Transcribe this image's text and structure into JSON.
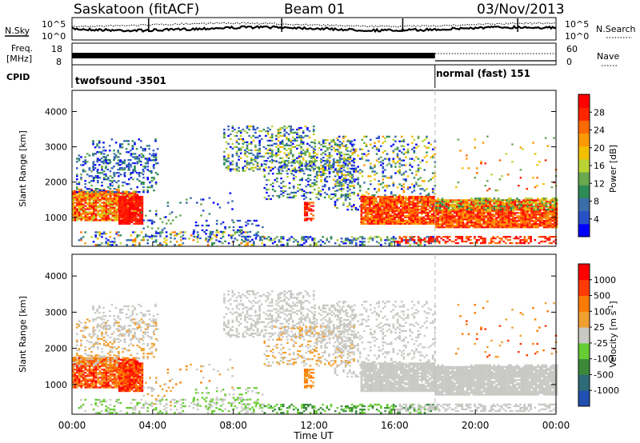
{
  "header": {
    "station": "Saskatoon (fitACF)",
    "beam": "Beam 01",
    "date": "03/Nov/2013"
  },
  "side_labels": {
    "nsky": "N.Sky",
    "freq_line1": "Freq.",
    "freq_line2": "[MHz]",
    "cpid": "CPID",
    "nsearch": "N.Search",
    "nave": "Nave"
  },
  "top_axes": {
    "nsky_left_ticks": [
      "10^5",
      "10^0"
    ],
    "nsky_right_ticks": [
      "10^5",
      "10^0"
    ],
    "freq_left_ticks": [
      "18",
      "8"
    ],
    "nave_right_ticks": [
      "60",
      "0"
    ]
  },
  "cpid_segments": [
    {
      "name": "twofsound",
      "id": "-3501",
      "label": "twofsound -3501"
    },
    {
      "name": "normal (fast)",
      "id": "151",
      "label": "normal (fast) 151"
    }
  ],
  "chart_data": [
    {
      "type": "heatmap",
      "name": "power-panel",
      "xlabel": "",
      "ylabel": "Slant Range [km]",
      "xlim": [
        0,
        24
      ],
      "ylim": [
        180,
        4600
      ],
      "yticks": [
        1000,
        2000,
        3000,
        4000
      ],
      "colorbar": {
        "label": "Power [dB]",
        "ticks": [
          "4",
          "8",
          "12",
          "16",
          "20",
          "24",
          "28"
        ],
        "colors": [
          "#0000ff",
          "#2a50c8",
          "#3a6ea8",
          "#2e8b57",
          "#6aa84f",
          "#b8d432",
          "#f2c000",
          "#ff9900",
          "#ff6a00",
          "#ff2400",
          "#ff0000"
        ]
      },
      "cpid_change_time": 18.0
    },
    {
      "type": "heatmap",
      "name": "velocity-panel",
      "xlabel": "Time UT",
      "ylabel": "Slant Range [km]",
      "xlim": [
        0,
        24
      ],
      "ylim": [
        180,
        4600
      ],
      "yticks": [
        1000,
        2000,
        3000,
        4000
      ],
      "xticks": [
        "00:00",
        "04:00",
        "08:00",
        "12:00",
        "16:00",
        "20:00",
        "00:00"
      ],
      "colorbar": {
        "label": "Velocity [m s",
        "label_sup": "-1",
        "label_end": "]",
        "ticks": [
          "1000",
          "500",
          "100",
          "25",
          "-25",
          "-100",
          "-500",
          "-1000"
        ],
        "colors": [
          "#1f4fb0",
          "#2e6b7a",
          "#3a8a3a",
          "#66cc33",
          "#c8c8c4",
          "#f0a030",
          "#ff7a00",
          "#ff3a00",
          "#ff0000"
        ]
      },
      "cpid_change_time": 18.0
    }
  ]
}
